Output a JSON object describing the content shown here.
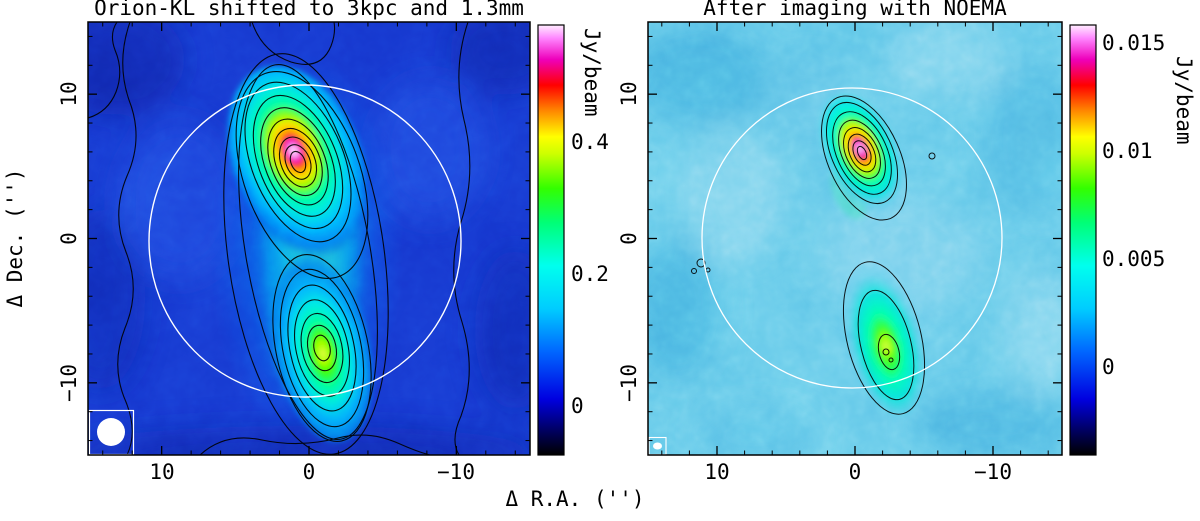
{
  "figure": {
    "shared_xlabel": "Δ R.A. ('')",
    "layout": "two side-by-side intensity maps with vertical colorbars, shared R.A. axis label"
  },
  "chart_data": [
    {
      "type": "heatmap",
      "panel": "left",
      "title": "Orion-KL shifted to 3kpc and 1.3mm",
      "xlabel": "Δ R.A. ('')",
      "ylabel": "Δ Dec. ('')",
      "xlim": [
        15,
        -15
      ],
      "ylim": [
        -15,
        15
      ],
      "x_ticks": [
        10,
        0,
        -10
      ],
      "x_tick_labels": [
        "10",
        "0",
        "−10"
      ],
      "y_ticks": [
        10,
        0,
        -10
      ],
      "y_tick_labels": [
        "10",
        "0",
        "−10"
      ],
      "grid": false,
      "colorbar": {
        "label": "Jy/beam",
        "ticks": [
          0.4,
          0.2,
          0
        ],
        "tick_labels": [
          "0.4",
          "0.2",
          "0"
        ],
        "approx_range": [
          -0.07,
          0.58
        ],
        "orientation": "vertical-right"
      },
      "sources": [
        {
          "name": "northern clump (hot core)",
          "dx_arcsec": 0.5,
          "dy_arcsec": 5.5,
          "approx_peak_jy_beam": 0.5,
          "morphology": "elongated NNE-SSW, nested contours rising to white/magenta core"
        },
        {
          "name": "southern clump",
          "dx_arcsec": -1,
          "dy_arcsec": -7.5,
          "approx_peak_jy_beam": 0.25,
          "morphology": "elongated, green-yellow peak"
        }
      ],
      "overlays": {
        "contours": "black, ~10 nested levels plus extended low-level irregular contours",
        "primary_beam_circle": {
          "dx": 0,
          "dy": 0,
          "radius_arcsec": 10.7,
          "color": "#ffffff"
        },
        "beam_marker": {
          "shape": "filled white circle",
          "approx_fwhm_arcsec": 1.9,
          "position": "bottom-left box"
        }
      }
    },
    {
      "type": "heatmap",
      "panel": "right",
      "title": "After imaging with NOEMA",
      "xlabel": "Δ R.A. ('')",
      "ylabel": "Δ Dec. ('')",
      "xlim": [
        15,
        -15
      ],
      "ylim": [
        -15,
        15
      ],
      "x_ticks": [
        10,
        0,
        -10
      ],
      "x_tick_labels": [
        "10",
        "0",
        "−10"
      ],
      "y_ticks": [
        10,
        0,
        -10
      ],
      "y_tick_labels": [
        "10",
        "0",
        "−10"
      ],
      "grid": false,
      "colorbar": {
        "label": "Jy/beam",
        "ticks": [
          0.015,
          0.01,
          0.005,
          0
        ],
        "tick_labels": [
          "0.015",
          "0.01",
          "0.005",
          "0"
        ],
        "approx_range": [
          -0.004,
          0.016
        ],
        "orientation": "vertical-right"
      },
      "sources": [
        {
          "name": "northern clump (hot core)",
          "dx_arcsec": 0.5,
          "dy_arcsec": 5.5,
          "approx_peak_jy_beam": 0.016,
          "morphology": "compact elongated source with magenta-white core"
        },
        {
          "name": "southern clump",
          "dx_arcsec": -2,
          "dy_arcsec": -7,
          "approx_peak_jy_beam": 0.007,
          "morphology": "elongated, green, weak inner contours"
        }
      ],
      "overlays": {
        "contours": "black, nested levels on both clumps plus small noise contours left of center",
        "primary_beam_circle": {
          "dx": 0,
          "dy": 0,
          "radius_arcsec": 10.7,
          "color": "#ffffff"
        },
        "beam_marker": {
          "shape": "small filled white ellipse",
          "position": "bottom-left box"
        }
      }
    }
  ],
  "colors": {
    "colormap_description": "black → dark blue → blue → cyan → green → yellow → orange → red → magenta → white",
    "colormap_stops": [
      "#000000",
      "#000055",
      "#0000e0",
      "#0066ff",
      "#00ccff",
      "#00ffee",
      "#00ff77",
      "#33ff00",
      "#ccff00",
      "#ffff00",
      "#ff8800",
      "#ff0000",
      "#ee00bb",
      "#ff88ff",
      "#ffeeff"
    ],
    "contour_color": "#000000",
    "primary_beam_circle_color": "#ffffff",
    "frame_and_text_color": "#000000",
    "page_background": "#ffffff"
  }
}
